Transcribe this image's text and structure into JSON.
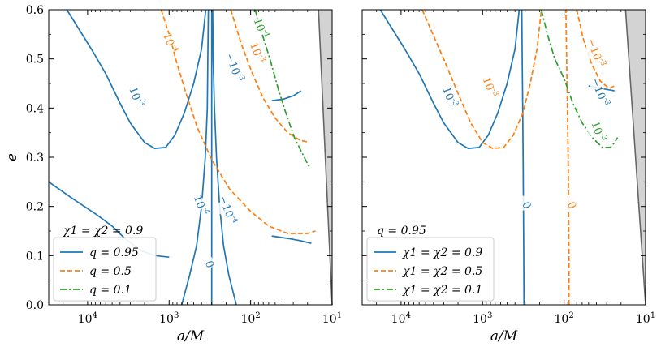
{
  "chart_data": [
    {
      "type": "line",
      "subtype": "contour",
      "xlabel": "a/M",
      "ylabel": "e",
      "xscale": "log",
      "x_inverted": true,
      "xlim": [
        30000,
        10
      ],
      "ylim": [
        0.0,
        0.6
      ],
      "x_ticks": [
        {
          "value": 10000,
          "label": "10^4"
        },
        {
          "value": 1000,
          "label": "10^3"
        },
        {
          "value": 100,
          "label": "10^2"
        },
        {
          "value": 10,
          "label": "10^1"
        }
      ],
      "y_ticks": [
        {
          "value": 0.0,
          "label": "0.0"
        },
        {
          "value": 0.1,
          "label": "0.1"
        },
        {
          "value": 0.2,
          "label": "0.2"
        },
        {
          "value": 0.3,
          "label": "0.3"
        },
        {
          "value": 0.4,
          "label": "0.4"
        },
        {
          "value": 0.5,
          "label": "0.5"
        },
        {
          "value": 0.6,
          "label": "0.6"
        }
      ],
      "annotation": "χ1 = χ2 = 0.9",
      "legend_position": "lower-left",
      "legend": [
        {
          "label": "q = 0.95",
          "color": "#1f77b4",
          "style": "solid"
        },
        {
          "label": "q = 0.5",
          "color": "#ff7f0e",
          "style": "dashed"
        },
        {
          "label": "q = 0.1",
          "color": "#2ca02c",
          "style": "dashdot"
        }
      ],
      "shaded_region": {
        "color": "#d3d3d3",
        "boundary": [
          [
            14.7,
            0.6
          ],
          [
            10,
            0.0
          ]
        ]
      },
      "series": [
        {
          "color": "#1f77b4",
          "style": "solid",
          "points": [
            [
              30000,
              0.25
            ],
            [
              15000,
              0.215
            ],
            [
              8000,
              0.185
            ],
            [
              5000,
              0.16
            ],
            [
              3500,
              0.135
            ],
            [
              2200,
              0.11
            ],
            [
              1500,
              0.1
            ],
            [
              1000,
              0.097
            ]
          ]
        },
        {
          "color": "#1f77b4",
          "style": "solid",
          "points": [
            [
              18000,
              0.6
            ],
            [
              9000,
              0.52
            ],
            [
              6000,
              0.47
            ],
            [
              4000,
              0.41
            ],
            [
              3000,
              0.37
            ],
            [
              2000,
              0.33
            ],
            [
              1500,
              0.318
            ],
            [
              1100,
              0.32
            ],
            [
              850,
              0.345
            ],
            [
              650,
              0.39
            ],
            [
              500,
              0.45
            ],
            [
              400,
              0.52
            ],
            [
              355,
              0.6
            ]
          ]
        },
        {
          "color": "#1f77b4",
          "style": "solid",
          "points": [
            [
              700,
              0.0
            ],
            [
              560,
              0.06
            ],
            [
              460,
              0.12
            ],
            [
              400,
              0.2
            ],
            [
              360,
              0.3
            ],
            [
              340,
              0.4
            ],
            [
              335,
              0.5
            ],
            [
              330,
              0.6
            ]
          ]
        },
        {
          "color": "#1f77b4",
          "style": "solid",
          "points": [
            [
              300,
              0.0
            ],
            [
              300,
              0.1
            ],
            [
              300,
              0.2
            ],
            [
              300,
              0.3
            ],
            [
              300,
              0.4
            ],
            [
              300,
              0.5
            ],
            [
              300,
              0.6
            ]
          ]
        },
        {
          "color": "#1f77b4",
          "style": "solid",
          "points": [
            [
              150,
              0.0
            ],
            [
              185,
              0.06
            ],
            [
              215,
              0.12
            ],
            [
              240,
              0.2
            ],
            [
              262,
              0.3
            ],
            [
              278,
              0.4
            ],
            [
              288,
              0.5
            ],
            [
              292,
              0.6
            ]
          ]
        },
        {
          "color": "#1f77b4",
          "style": "solid",
          "points": [
            [
              55,
              0.14
            ],
            [
              35,
              0.135
            ],
            [
              24,
              0.13
            ],
            [
              18,
              0.125
            ]
          ]
        },
        {
          "color": "#1f77b4",
          "style": "solid",
          "points": [
            [
              55,
              0.415
            ],
            [
              40,
              0.418
            ],
            [
              30,
              0.425
            ],
            [
              24,
              0.435
            ]
          ]
        },
        {
          "color": "#ff7f0e",
          "style": "dashed",
          "points": [
            [
              1250,
              0.6
            ],
            [
              1000,
              0.55
            ],
            [
              800,
              0.49
            ],
            [
              620,
              0.43
            ],
            [
              450,
              0.36
            ],
            [
              300,
              0.295
            ],
            [
              180,
              0.235
            ],
            [
              100,
              0.19
            ],
            [
              60,
              0.16
            ],
            [
              35,
              0.145
            ],
            [
              20,
              0.145
            ],
            [
              16,
              0.15
            ]
          ]
        },
        {
          "color": "#ff7f0e",
          "style": "dashed",
          "points": [
            [
              175,
              0.6
            ],
            [
              130,
              0.53
            ],
            [
              95,
              0.47
            ],
            [
              70,
              0.42
            ],
            [
              50,
              0.38
            ],
            [
              35,
              0.35
            ],
            [
              25,
              0.335
            ],
            [
              19,
              0.33
            ]
          ]
        },
        {
          "color": "#2ca02c",
          "style": "dashdot",
          "points": [
            [
              88,
              0.6
            ],
            [
              72,
              0.55
            ],
            [
              58,
              0.5
            ],
            [
              46,
              0.44
            ],
            [
              37,
              0.39
            ],
            [
              29,
              0.34
            ],
            [
              22,
              0.3
            ],
            [
              19,
              0.28
            ]
          ]
        }
      ],
      "contour_labels": [
        {
          "text": "10^{-3}",
          "color": "#1f77b4",
          "x": 2800,
          "y": 0.42
        },
        {
          "text": "10^{-4}",
          "color": "#1f77b4",
          "x": 450,
          "y": 0.2
        },
        {
          "text": "0",
          "color": "#1f77b4",
          "x": 350,
          "y": 0.08
        },
        {
          "text": "−10^{-3}",
          "color": "#1f77b4",
          "x": 175,
          "y": 0.48
        },
        {
          "text": "−10^{-4}",
          "color": "#1f77b4",
          "x": 210,
          "y": 0.19
        },
        {
          "text": "10^{-4}",
          "color": "#ff7f0e",
          "x": 1070,
          "y": 0.53
        },
        {
          "text": "10^{-3}",
          "color": "#ff7f0e",
          "x": 92,
          "y": 0.51
        },
        {
          "text": "10^{-4}",
          "color": "#2ca02c",
          "x": 83,
          "y": 0.56
        }
      ]
    },
    {
      "type": "line",
      "subtype": "contour",
      "xlabel": "a/M",
      "ylabel": "",
      "xscale": "log",
      "x_inverted": true,
      "xlim": [
        30000,
        10
      ],
      "ylim": [
        0.0,
        0.6
      ],
      "x_ticks": [
        {
          "value": 10000,
          "label": "10^4"
        },
        {
          "value": 1000,
          "label": "10^3"
        },
        {
          "value": 100,
          "label": "10^2"
        },
        {
          "value": 10,
          "label": "10^1"
        }
      ],
      "annotation": "q = 0.95",
      "legend_position": "lower-left",
      "legend": [
        {
          "label": "χ1 = χ2 = 0.9",
          "color": "#1f77b4",
          "style": "solid"
        },
        {
          "label": "χ1 = χ2 = 0.5",
          "color": "#ff7f0e",
          "style": "dashed"
        },
        {
          "label": "χ1 = χ2 = 0.1",
          "color": "#2ca02c",
          "style": "dashdot"
        }
      ],
      "shaded_region": {
        "color": "#d3d3d3",
        "boundary": [
          [
            17.6,
            0.6
          ],
          [
            10,
            0.0
          ]
        ]
      },
      "series": [
        {
          "color": "#1f77b4",
          "style": "solid",
          "points": [
            [
              18000,
              0.6
            ],
            [
              9000,
              0.52
            ],
            [
              6000,
              0.47
            ],
            [
              4000,
              0.41
            ],
            [
              3000,
              0.37
            ],
            [
              2000,
              0.33
            ],
            [
              1500,
              0.318
            ],
            [
              1100,
              0.32
            ],
            [
              850,
              0.345
            ],
            [
              650,
              0.39
            ],
            [
              500,
              0.45
            ],
            [
              400,
              0.52
            ],
            [
              355,
              0.6
            ]
          ]
        },
        {
          "color": "#1f77b4",
          "style": "solid",
          "points": [
            [
              310,
              0.0
            ],
            [
              312,
              0.1
            ],
            [
              315,
              0.2
            ],
            [
              318,
              0.3
            ],
            [
              322,
              0.4
            ],
            [
              326,
              0.5
            ],
            [
              330,
              0.6
            ]
          ]
        },
        {
          "color": "#1f77b4",
          "style": "solid",
          "points": [
            [
              50,
              0.445
            ],
            [
              35,
              0.44
            ],
            [
              24,
              0.435
            ]
          ]
        },
        {
          "color": "#ff7f0e",
          "style": "dashed",
          "points": [
            [
              5500,
              0.6
            ],
            [
              3000,
              0.5
            ],
            [
              2000,
              0.43
            ],
            [
              1400,
              0.37
            ],
            [
              1000,
              0.33
            ],
            [
              750,
              0.318
            ],
            [
              550,
              0.32
            ],
            [
              420,
              0.345
            ],
            [
              320,
              0.39
            ],
            [
              260,
              0.45
            ],
            [
              215,
              0.52
            ],
            [
              190,
              0.6
            ]
          ]
        },
        {
          "color": "#ff7f0e",
          "style": "dashed",
          "points": [
            [
              87,
              0.0
            ],
            [
              87,
              0.1
            ],
            [
              88,
              0.2
            ],
            [
              89,
              0.3
            ],
            [
              91,
              0.4
            ],
            [
              93,
              0.5
            ],
            [
              95,
              0.6
            ]
          ]
        },
        {
          "color": "#ff7f0e",
          "style": "dashed",
          "points": [
            [
              70,
              0.6
            ],
            [
              58,
              0.54
            ],
            [
              46,
              0.49
            ],
            [
              36,
              0.455
            ],
            [
              28,
              0.44
            ],
            [
              24,
              0.445
            ]
          ]
        },
        {
          "color": "#2ca02c",
          "style": "dashdot",
          "points": [
            [
              190,
              0.6
            ],
            [
              160,
              0.55
            ],
            [
              130,
              0.5
            ],
            [
              100,
              0.46
            ],
            [
              78,
              0.41
            ],
            [
              60,
              0.37
            ],
            [
              45,
              0.34
            ],
            [
              34,
              0.32
            ],
            [
              27,
              0.32
            ],
            [
              24,
              0.33
            ],
            [
              22,
              0.34
            ]
          ]
        }
      ],
      "contour_labels": [
        {
          "text": "10^{-3}",
          "color": "#1f77b4",
          "x": 2800,
          "y": 0.42
        },
        {
          "text": "0",
          "color": "#1f77b4",
          "x": 316,
          "y": 0.2
        },
        {
          "text": "−10^{-3}",
          "color": "#1f77b4",
          "x": 40,
          "y": 0.43
        },
        {
          "text": "10^{-3}",
          "color": "#ff7f0e",
          "x": 900,
          "y": 0.44
        },
        {
          "text": "0",
          "color": "#ff7f0e",
          "x": 88,
          "y": 0.2
        },
        {
          "text": "−10^{-3}",
          "color": "#ff7f0e",
          "x": 45,
          "y": 0.51
        },
        {
          "text": "10^{-3}",
          "color": "#2ca02c",
          "x": 42,
          "y": 0.35
        }
      ]
    }
  ]
}
